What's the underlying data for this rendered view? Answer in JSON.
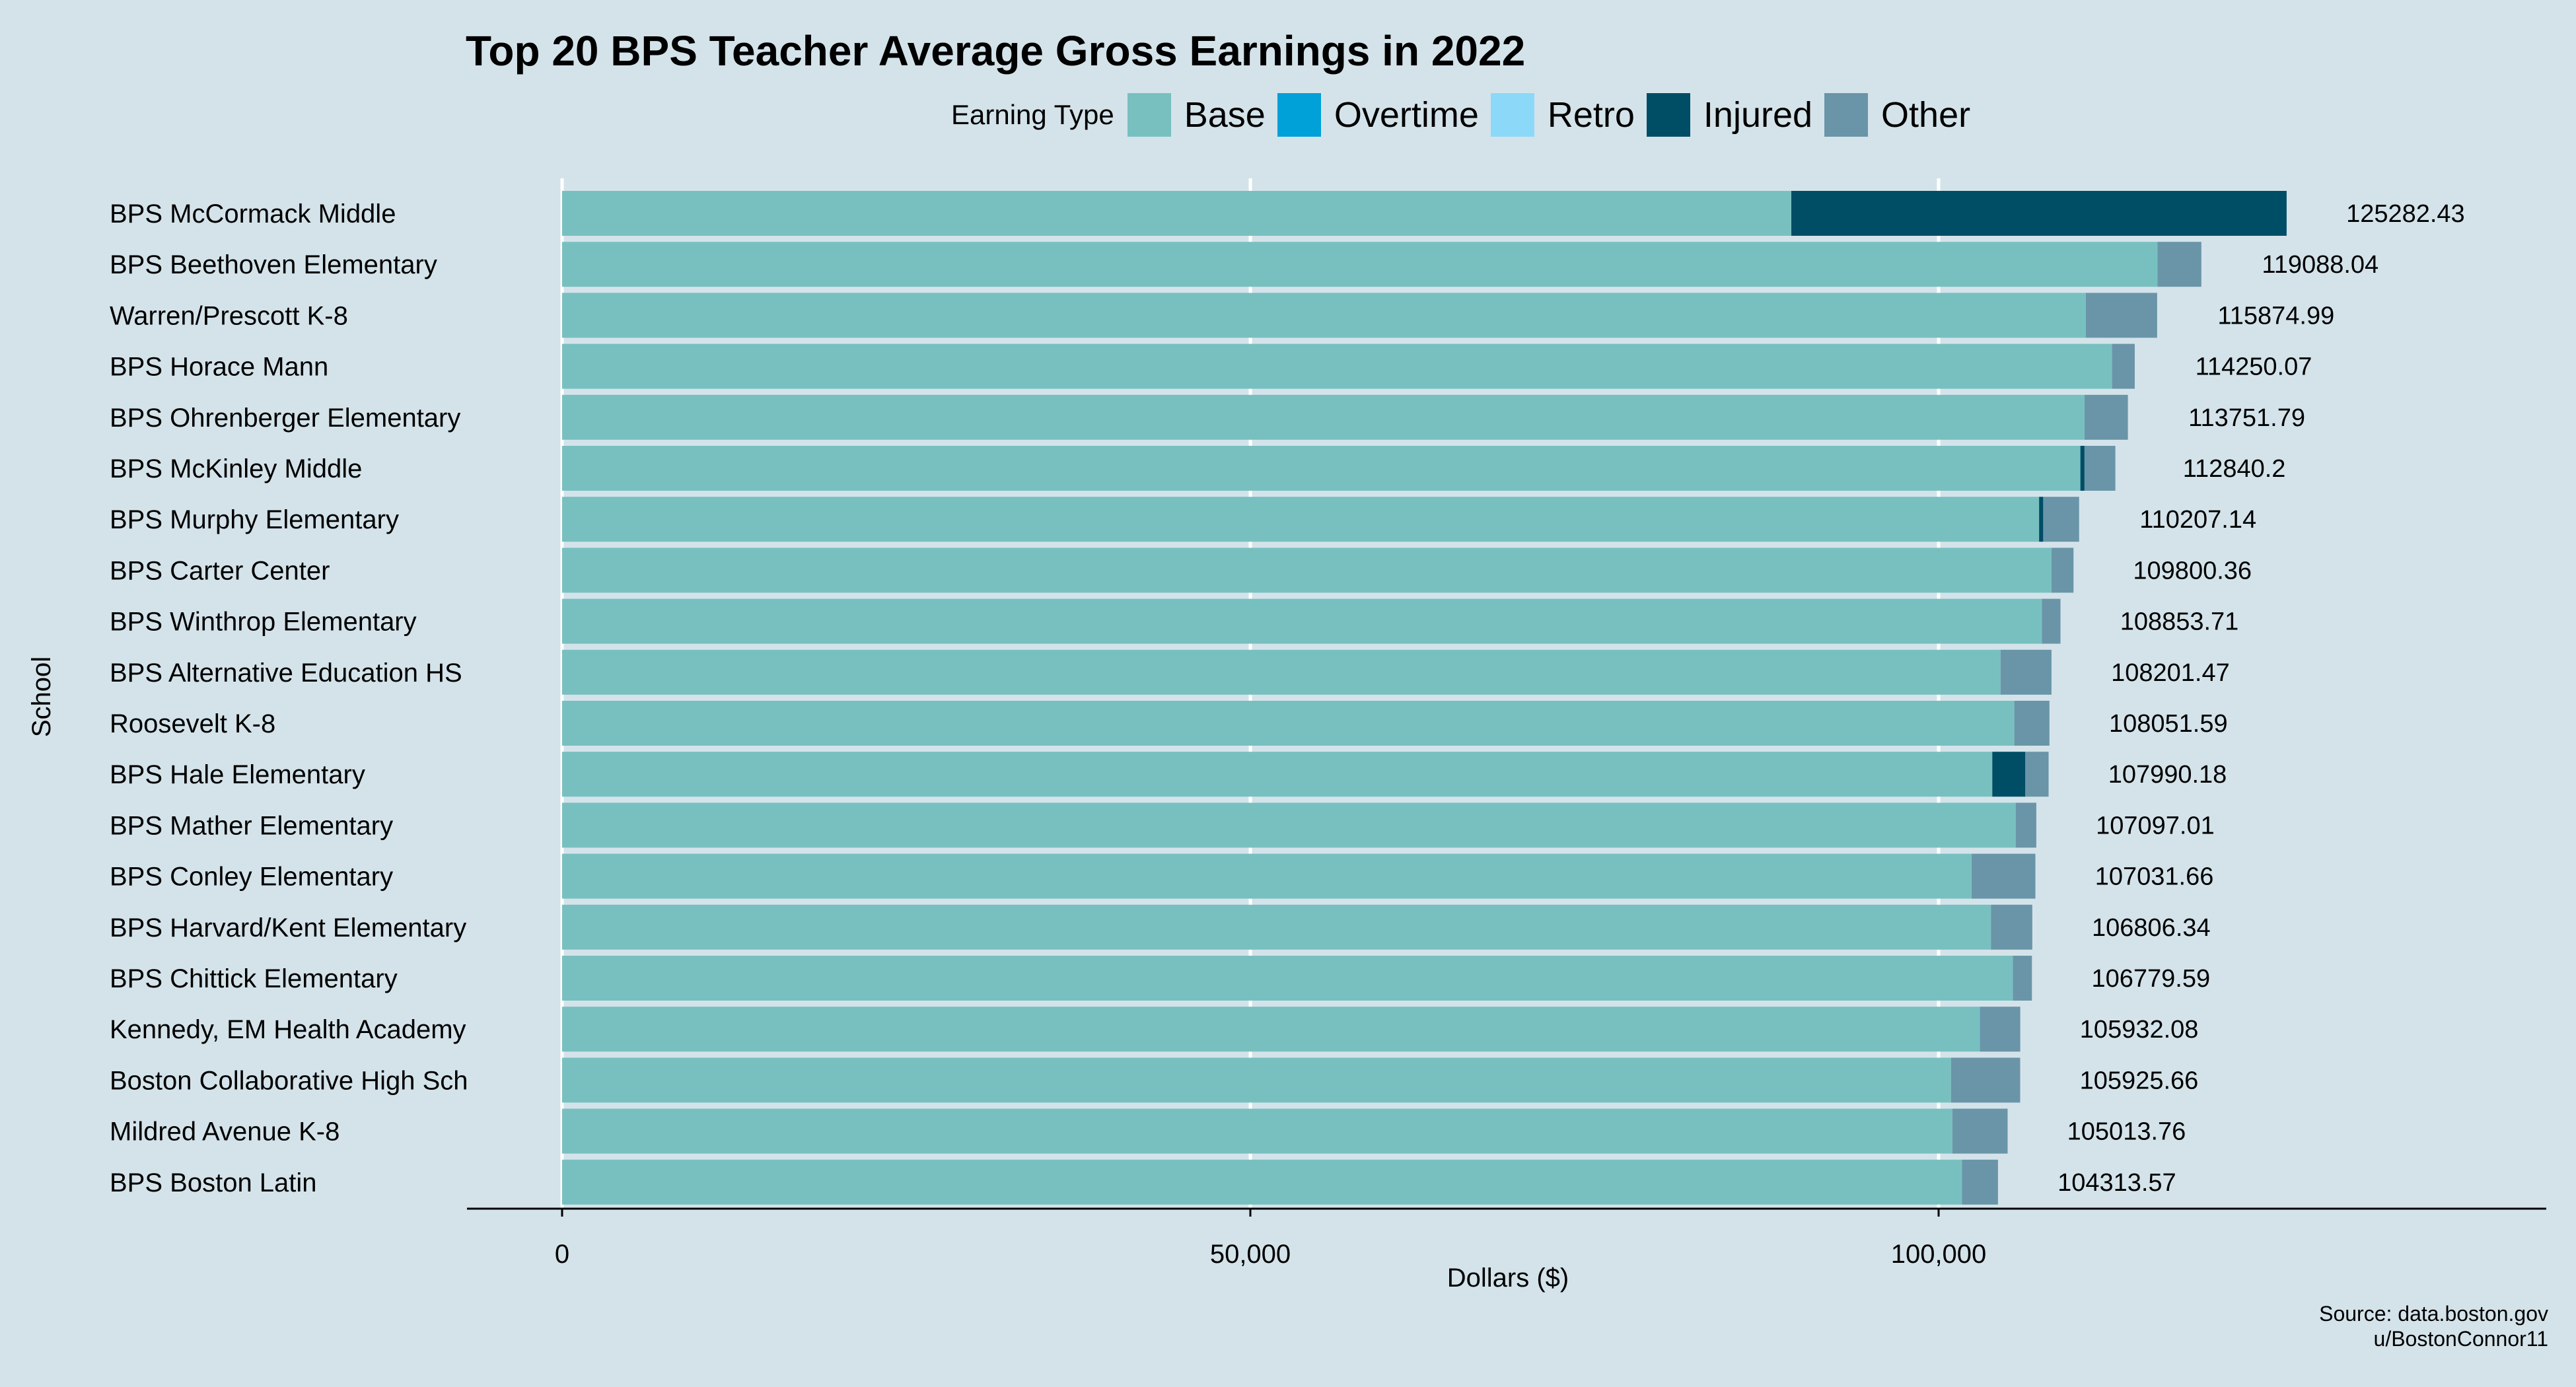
{
  "chart_data": {
    "type": "bar",
    "orientation": "horizontal",
    "stacked": true,
    "title": "Top 20 BPS Teacher Average Gross Earnings in 2022",
    "xlabel": "Dollars ($)",
    "ylabel": "School",
    "xlim": [
      -7000,
      145000
    ],
    "x_ticks": [
      0,
      50000,
      100000
    ],
    "x_tick_labels": [
      "0",
      "50,000",
      "100,000"
    ],
    "grid": "vertical major gridlines (white)",
    "legend": {
      "title": "Earning Type",
      "placement": "top",
      "entries": [
        {
          "label": "Base",
          "color": "#78c0c0"
        },
        {
          "label": "Overtime",
          "color": "#00a0d8"
        },
        {
          "label": "Retro",
          "color": "#8cd8f8"
        },
        {
          "label": "Injured",
          "color": "#004d66"
        },
        {
          "label": "Other",
          "color": "#6a95a8"
        }
      ]
    },
    "categories": [
      "BPS McCormack Middle",
      "BPS Beethoven Elementary",
      "Warren/Prescott K-8",
      "BPS Horace Mann",
      "BPS Ohrenberger Elementary",
      "BPS McKinley Middle",
      "BPS Murphy Elementary",
      "BPS Carter Center",
      "BPS Winthrop Elementary",
      "BPS Alternative Education HS",
      "Roosevelt K-8",
      "BPS Hale Elementary",
      "BPS Mather Elementary",
      "BPS Conley Elementary",
      "BPS Harvard/Kent Elementary",
      "BPS Chittick Elementary",
      "Kennedy, EM Health Academy",
      "Boston Collaborative High Sch",
      "Mildred Avenue K-8",
      "BPS Boston Latin"
    ],
    "series": [
      {
        "name": "Base",
        "values": [
          89300,
          115900,
          110700,
          112600,
          110600,
          110300,
          107300,
          108200,
          107500,
          104500,
          105500,
          103900,
          105600,
          102400,
          103800,
          105400,
          103000,
          100900,
          101000,
          101700
        ]
      },
      {
        "name": "Overtime",
        "values": [
          0,
          0,
          0,
          0,
          0,
          0,
          0,
          0,
          0,
          0,
          0,
          0,
          0,
          0,
          0,
          0,
          0,
          0,
          0,
          0
        ]
      },
      {
        "name": "Retro",
        "values": [
          0,
          0,
          0,
          0,
          0,
          0,
          0,
          0,
          0,
          0,
          0,
          0,
          0,
          0,
          0,
          0,
          0,
          0,
          0,
          0
        ]
      },
      {
        "name": "Injured",
        "values": [
          35982.43,
          0,
          0,
          0,
          0,
          300,
          300,
          0,
          0,
          0,
          0,
          2400,
          0,
          0,
          0,
          0,
          0,
          0,
          0,
          0
        ]
      },
      {
        "name": "Other",
        "values": [
          0,
          3188.04,
          5174.99,
          1650.07,
          3151.79,
          2240.2,
          2607.14,
          1600.36,
          1353.71,
          3701.47,
          2551.59,
          1690.18,
          1497.01,
          4631.66,
          3006.34,
          1379.59,
          2932.08,
          5025.66,
          4013.76,
          2613.57
        ]
      }
    ],
    "totals": [
      125282.43,
      119088.04,
      115874.99,
      114250.07,
      113751.79,
      112840.2,
      110207.14,
      109800.36,
      108853.71,
      108201.47,
      108051.59,
      107990.18,
      107097.01,
      107031.66,
      106806.34,
      106779.59,
      105932.08,
      105925.66,
      105013.76,
      104313.57
    ],
    "total_labels": [
      "125282.43",
      "119088.04",
      "115874.99",
      "114250.07",
      "113751.79",
      "112840.2",
      "110207.14",
      "109800.36",
      "108853.71",
      "108201.47",
      "108051.59",
      "107990.18",
      "107097.01",
      "107031.66",
      "106806.34",
      "106779.59",
      "105932.08",
      "105925.66",
      "105013.76",
      "104313.57"
    ],
    "caption": [
      "Source: data.boston.gov",
      "u/BostonConnor11"
    ]
  }
}
